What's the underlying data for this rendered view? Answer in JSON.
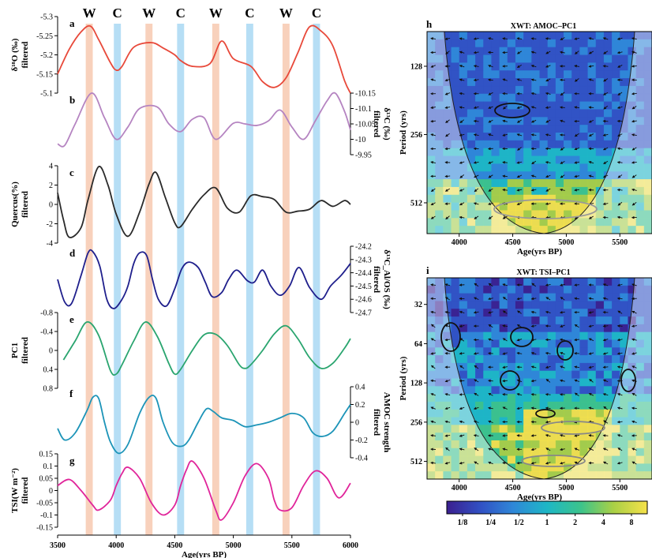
{
  "chart_data": [
    {
      "type": "line",
      "panels_group": "left",
      "x_axis": {
        "label": "Age(yrs BP)",
        "range": [
          3500,
          6000
        ],
        "ticks": [
          3500,
          4000,
          4500,
          5000,
          5500,
          6000
        ]
      },
      "bands": {
        "warm_label": "W",
        "cold_label": "C",
        "warm": [
          [
            3740,
            3800
          ],
          [
            4250,
            4310
          ],
          [
            4820,
            4880
          ],
          [
            5420,
            5480
          ]
        ],
        "cold": [
          [
            3980,
            4040
          ],
          [
            4520,
            4580
          ],
          [
            5110,
            5170
          ],
          [
            5680,
            5740
          ]
        ],
        "warm_color": "#f7c9b0",
        "cold_color": "#a9d8f3"
      },
      "panels": [
        {
          "letter": "a",
          "ylabel": [
            "δ¹⁸O (‰)",
            "filtered"
          ],
          "side": "left",
          "range": [
            -5.1,
            -5.3
          ],
          "ticks": [
            -5.3,
            -5.25,
            -5.2,
            -5.15,
            -5.1
          ],
          "color": "#e8493a",
          "x": [
            3500,
            3600,
            3700,
            3780,
            3850,
            3950,
            4000,
            4050,
            4150,
            4300,
            4400,
            4500,
            4550,
            4650,
            4800,
            4900,
            5000,
            5150,
            5250,
            5350,
            5450,
            5550,
            5650,
            5750,
            5850,
            5950,
            6000
          ],
          "y": [
            -5.15,
            -5.215,
            -5.26,
            -5.275,
            -5.24,
            -5.18,
            -5.16,
            -5.17,
            -5.22,
            -5.232,
            -5.218,
            -5.2,
            -5.185,
            -5.17,
            -5.177,
            -5.236,
            -5.19,
            -5.17,
            -5.13,
            -5.115,
            -5.14,
            -5.205,
            -5.273,
            -5.262,
            -5.223,
            -5.132,
            -5.1
          ]
        },
        {
          "letter": "b",
          "ylabel": [
            "δ¹³C (‰)",
            "filtered"
          ],
          "side": "right",
          "range": [
            -9.95,
            -10.15
          ],
          "ticks": [
            -10.15,
            -10.1,
            -10.05,
            -10,
            -9.95
          ],
          "color": "#b584c1",
          "x": [
            3500,
            3560,
            3650,
            3790,
            3900,
            4000,
            4100,
            4200,
            4350,
            4450,
            4550,
            4650,
            4750,
            4850,
            5000,
            5100,
            5200,
            5300,
            5400,
            5500,
            5600,
            5700,
            5800,
            5870,
            5950,
            6000
          ],
          "y": [
            -9.985,
            -9.98,
            -10.05,
            -10.15,
            -10.07,
            -10.0,
            -10.04,
            -10.1,
            -10.105,
            -10.05,
            -10.025,
            -10.065,
            -10.07,
            -10.0,
            -10.052,
            -10.05,
            -10.045,
            -10.06,
            -10.095,
            -10.04,
            -10.0,
            -10.06,
            -10.125,
            -10.15,
            -10.09,
            -10.03
          ]
        },
        {
          "letter": "c",
          "ylabel": [
            "Quercus(%)",
            "filtered"
          ],
          "side": "left",
          "range": [
            -4,
            4
          ],
          "ticks": [
            -4,
            -2,
            0,
            2,
            4
          ],
          "color": "#2a2a2a",
          "x": [
            3500,
            3550,
            3600,
            3700,
            3760,
            3850,
            3930,
            4000,
            4100,
            4200,
            4280,
            4340,
            4420,
            4500,
            4550,
            4650,
            4750,
            4850,
            4950,
            5050,
            5150,
            5250,
            5350,
            5450,
            5550,
            5650,
            5750,
            5850,
            5950,
            6000
          ],
          "y": [
            1.2,
            -1.6,
            -3.4,
            -2.4,
            0.5,
            3.9,
            2.0,
            -1.0,
            -3.3,
            -0.8,
            2.1,
            3.3,
            0.7,
            -1.9,
            -2.3,
            -0.5,
            1.0,
            1.7,
            -0.4,
            -0.8,
            0.9,
            0.8,
            0.5,
            -0.8,
            -0.7,
            -0.5,
            0.4,
            -0.2,
            0.4,
            0.0
          ]
        },
        {
          "letter": "d",
          "ylabel": [
            "δ¹³C_Al/OS (‰)",
            "filtered"
          ],
          "side": "right",
          "range": [
            -24.7,
            -24.2
          ],
          "ticks": [
            -24.2,
            -24.3,
            -24.4,
            -24.5,
            -24.6,
            -24.7
          ],
          "color": "#1f1f8c",
          "x": [
            3500,
            3560,
            3620,
            3700,
            3760,
            3800,
            3860,
            3920,
            3980,
            4050,
            4100,
            4150,
            4200,
            4260,
            4310,
            4360,
            4430,
            4500,
            4560,
            4620,
            4700,
            4760,
            4820,
            4900,
            4960,
            5030,
            5120,
            5180,
            5250,
            5320,
            5400,
            5480,
            5560,
            5650,
            5750,
            5830,
            5920,
            6000
          ],
          "y": [
            -24.45,
            -24.62,
            -24.63,
            -24.42,
            -24.25,
            -24.24,
            -24.35,
            -24.6,
            -24.67,
            -24.6,
            -24.5,
            -24.33,
            -24.25,
            -24.27,
            -24.45,
            -24.6,
            -24.65,
            -24.52,
            -24.37,
            -24.32,
            -24.36,
            -24.47,
            -24.58,
            -24.55,
            -24.45,
            -24.38,
            -24.46,
            -24.47,
            -24.38,
            -24.5,
            -24.57,
            -24.5,
            -24.36,
            -24.51,
            -24.6,
            -24.5,
            -24.42,
            -24.33
          ]
        },
        {
          "letter": "e",
          "ylabel": [
            "PC1",
            "filtered"
          ],
          "side": "left",
          "range": [
            0.8,
            -0.8
          ],
          "ticks": [
            -0.8,
            -0.4,
            0,
            0.4,
            0.8
          ],
          "color": "#2aa56f",
          "x": [
            3550,
            3650,
            3750,
            3850,
            3950,
            4000,
            4050,
            4150,
            4250,
            4350,
            4450,
            4500,
            4550,
            4650,
            4750,
            4850,
            4950,
            5050,
            5100,
            5150,
            5250,
            5350,
            5450,
            5550,
            5650,
            5750,
            5850,
            5950,
            6000
          ],
          "y": [
            0.2,
            -0.2,
            -0.6,
            -0.32,
            0.42,
            0.5,
            0.3,
            -0.2,
            -0.6,
            -0.3,
            0.28,
            0.5,
            0.4,
            0.0,
            -0.33,
            -0.34,
            -0.1,
            0.3,
            0.38,
            0.3,
            0.0,
            -0.35,
            -0.52,
            -0.25,
            0.15,
            0.38,
            0.27,
            -0.05,
            -0.25
          ]
        },
        {
          "letter": "f",
          "ylabel": [
            "AMOC strength",
            "filtered"
          ],
          "side": "right",
          "range": [
            -0.4,
            0.4
          ],
          "ticks": [
            0.4,
            0.2,
            0,
            -0.2,
            -0.4
          ],
          "color": "#1c94b8",
          "x": [
            3500,
            3560,
            3650,
            3750,
            3800,
            3850,
            3900,
            3950,
            4020,
            4100,
            4200,
            4280,
            4340,
            4400,
            4480,
            4560,
            4620,
            4700,
            4770,
            4830,
            4900,
            5000,
            5100,
            5200,
            5300,
            5400,
            5500,
            5600,
            5680,
            5760,
            5850,
            5950,
            6000
          ],
          "y": [
            -0.07,
            -0.2,
            -0.12,
            0.13,
            0.28,
            0.27,
            0.0,
            -0.22,
            -0.35,
            -0.25,
            0.1,
            0.28,
            0.27,
            0.0,
            -0.23,
            -0.27,
            -0.2,
            0.0,
            0.15,
            0.12,
            0.05,
            0.02,
            -0.05,
            -0.03,
            0.0,
            0.05,
            0.1,
            0.05,
            -0.12,
            -0.16,
            -0.1,
            0.1,
            0.2
          ]
        },
        {
          "letter": "g",
          "ylabel": [
            "TSI(W m⁻²)",
            "filtered"
          ],
          "side": "left",
          "range": [
            -0.15,
            0.15
          ],
          "ticks": [
            0.15,
            0.1,
            0.05,
            0,
            -0.05,
            -0.1,
            -0.15
          ],
          "color": "#e0249a",
          "x": [
            3500,
            3600,
            3700,
            3800,
            3850,
            3950,
            4000,
            4050,
            4100,
            4200,
            4300,
            4400,
            4500,
            4550,
            4600,
            4650,
            4750,
            4850,
            4900,
            5000,
            5100,
            5200,
            5300,
            5350,
            5400,
            5500,
            5600,
            5700,
            5800,
            5900,
            6000
          ],
          "y": [
            0.02,
            0.045,
            0.0,
            -0.06,
            -0.08,
            -0.04,
            0.02,
            0.07,
            0.095,
            0.05,
            -0.05,
            -0.1,
            -0.06,
            0.02,
            0.085,
            0.12,
            0.05,
            -0.08,
            -0.12,
            -0.05,
            0.06,
            0.11,
            0.05,
            -0.04,
            -0.08,
            -0.07,
            0.02,
            0.08,
            0.05,
            -0.03,
            0.03
          ]
        }
      ]
    },
    {
      "type": "heatmap",
      "letter": "h",
      "title": "XWT: AMOC–PC1",
      "xlabel": "Age(yrs BP)",
      "ylabel": "Period (yrs)",
      "x_ticks": [
        4000,
        4500,
        5000,
        5500
      ],
      "x_range": [
        3700,
        5800
      ],
      "y_ticks": [
        128,
        256,
        512
      ],
      "y_range": [
        90,
        700
      ],
      "y_scale": "log2"
    },
    {
      "type": "heatmap",
      "letter": "i",
      "title": "XWT: TSI–PC1",
      "xlabel": "Age(yrs BP)",
      "ylabel": "Period (yrs)",
      "x_ticks": [
        4000,
        4500,
        5000,
        5500
      ],
      "x_range": [
        3700,
        5800
      ],
      "y_ticks": [
        32,
        64,
        128,
        256,
        512
      ],
      "y_range": [
        20,
        700
      ],
      "y_scale": "log2"
    },
    {
      "type": "colorbar",
      "ticks": [
        "1/8",
        "1/4",
        "1/2",
        "1",
        "2",
        "4",
        "8"
      ],
      "colors": [
        "#3b1f8f",
        "#3151c4",
        "#2f87d8",
        "#1eb7c6",
        "#3cc48b",
        "#a9d046",
        "#f6e24a"
      ]
    }
  ]
}
